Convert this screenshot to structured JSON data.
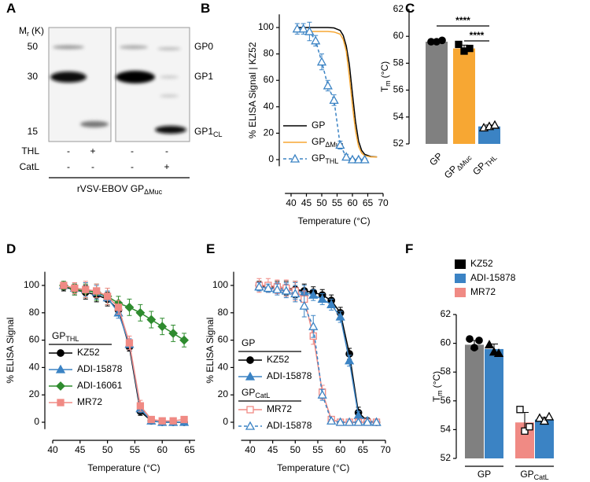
{
  "blot": {
    "panel": "A",
    "mr_label": "M",
    "mr_label_sub": "r",
    "mr_label_unit": "(K)",
    "mw_ticks": [
      "50",
      "30",
      "15"
    ],
    "bands": [
      {
        "text": "GP0"
      },
      {
        "text": "GP1"
      },
      {
        "text": "GP1",
        "text_sub": "CL"
      }
    ],
    "rows": [
      {
        "label": "THL",
        "values": [
          "-",
          "+",
          "-",
          "-"
        ]
      },
      {
        "label": "CatL",
        "values": [
          "-",
          "-",
          "-",
          "+"
        ]
      }
    ],
    "footer": "rVSV-EBOV GP",
    "footer_sub": "ΔMuc"
  },
  "chart_data": [
    {
      "type": "line",
      "panel": "B",
      "ylabel": "% ELISA Signal | KZ52",
      "xlabel": "Temperature (°C)",
      "xlim": [
        38,
        70
      ],
      "xticks": [
        40,
        45,
        50,
        55,
        60,
        65,
        70
      ],
      "ylim": [
        -5,
        110
      ],
      "yticks": [
        0,
        20,
        40,
        60,
        80,
        100
      ],
      "groups": [
        {
          "series": [
            {
              "name": "GP",
              "color": "#000000",
              "x": [
                42,
                44,
                46,
                48,
                50,
                52,
                54,
                56,
                57,
                58,
                59,
                60,
                61,
                62,
                63,
                64,
                66,
                68
              ],
              "values": [
                100,
                100,
                100,
                100,
                100,
                100,
                99.7,
                97.8,
                94,
                86,
                72,
                50,
                29,
                14,
                7,
                4,
                2.3,
                2
              ]
            },
            {
              "name": "GP",
              "name_sub": "ΔMuc",
              "color": "#f7a733",
              "x": [
                42,
                44,
                46,
                48,
                50,
                52,
                54,
                56,
                57,
                58,
                59,
                60,
                61,
                62,
                63,
                64,
                66,
                68
              ],
              "values": [
                97,
                97,
                97,
                97,
                97,
                97,
                96.6,
                95,
                91,
                82,
                63,
                41,
                22,
                10,
                5,
                3,
                2,
                2
              ]
            },
            {
              "name": "GP",
              "name_sub": "THL",
              "color": "#3b83c4",
              "dash": true,
              "marker": "triangle",
              "open": true,
              "x": [
                42,
                44,
                46,
                48,
                50,
                52,
                54,
                56,
                58,
                60,
                62,
                64
              ],
              "values": [
                99,
                99,
                97,
                90,
                74,
                56,
                45,
                11,
                2,
                0,
                0,
                0
              ],
              "errors": [
                4,
                4,
                7,
                4,
                6,
                4,
                4,
                3,
                2,
                1,
                1,
                1
              ]
            }
          ]
        }
      ]
    },
    {
      "type": "bar",
      "panel": "C",
      "ylabel": "T",
      "ylabel_sub": "m",
      "ylabel_unit": "(°C)",
      "ylim": [
        52,
        62
      ],
      "yticks": [
        52,
        54,
        56,
        58,
        60,
        62
      ],
      "significance": [
        "****",
        "****"
      ],
      "point_color": "#000000",
      "bars": [
        {
          "label": "GP",
          "color": "#808080",
          "value": 59.6,
          "error": 0.1,
          "marker": "circle",
          "points": [
            59.6,
            59.6,
            59.7
          ]
        },
        {
          "label": "GP",
          "label_sub": "ΔMuc",
          "color": "#f7a733",
          "value": 59.1,
          "error": 0.25,
          "marker": "square",
          "points": [
            59.4,
            58.9,
            59.1
          ]
        },
        {
          "label": "GP",
          "label_sub": "THL",
          "color": "#3b83c4",
          "value": 53.3,
          "error": 0.1,
          "marker": "triangle",
          "open": true,
          "points": [
            53.2,
            53.3,
            53.4
          ]
        }
      ]
    },
    {
      "type": "line",
      "panel": "D",
      "ylabel": "% ELISA Signal",
      "xlabel": "Temperature (°C)",
      "xlim": [
        40,
        66
      ],
      "xticks": [
        40,
        45,
        50,
        55,
        60,
        65
      ],
      "ylim": [
        -5,
        110
      ],
      "yticks": [
        0,
        20,
        40,
        60,
        80,
        100
      ],
      "groups": [
        {
          "title": "GP",
          "title_sub": "THL",
          "series": [
            {
              "name": "KZ52",
              "color": "#000000",
              "marker": "circle",
              "x": [
                42,
                44,
                46,
                48,
                50,
                52,
                54,
                56,
                58,
                60,
                62,
                64
              ],
              "values": [
                99,
                97,
                95,
                93,
                90,
                82,
                55,
                8,
                1,
                0,
                0,
                0
              ],
              "errors": [
                3,
                4,
                5,
                5,
                5,
                4,
                3,
                3,
                1,
                1,
                1,
                1
              ]
            },
            {
              "name": "ADI-15878",
              "color": "#3b83c4",
              "marker": "triangle",
              "x": [
                42,
                44,
                46,
                48,
                50,
                52,
                54,
                56,
                58,
                60,
                62,
                64
              ],
              "values": [
                100,
                98,
                97,
                95,
                91,
                80,
                57,
                10,
                1,
                0,
                0,
                0
              ],
              "errors": [
                2,
                4,
                5,
                5,
                5,
                4,
                4,
                3,
                1,
                1,
                1,
                1
              ]
            },
            {
              "name": "ADI-16061",
              "color": "#2e8b2e",
              "marker": "diamond",
              "x": [
                42,
                44,
                46,
                48,
                50,
                52,
                54,
                56,
                58,
                60,
                62,
                64
              ],
              "values": [
                100,
                97,
                96,
                95,
                92,
                87,
                84,
                80,
                75,
                70,
                65,
                60
              ],
              "errors": [
                3,
                4,
                5,
                6,
                6,
                5,
                6,
                6,
                6,
                6,
                6,
                5
              ]
            },
            {
              "name": "MR72",
              "color": "#f08a84",
              "marker": "square",
              "x": [
                42,
                44,
                46,
                48,
                50,
                52,
                54,
                56,
                58,
                60,
                62,
                64
              ],
              "values": [
                100,
                98,
                97,
                96,
                92,
                84,
                58,
                12,
                2,
                1,
                1,
                2
              ],
              "errors": [
                2,
                4,
                6,
                5,
                6,
                5,
                5,
                4,
                2,
                1,
                1,
                2
              ]
            }
          ]
        }
      ]
    },
    {
      "type": "line",
      "panel": "E",
      "ylabel": "% ELISA Signal",
      "xlabel": "Temperature (°C)",
      "xlim": [
        38,
        70
      ],
      "xticks": [
        40,
        45,
        50,
        55,
        60,
        65,
        70
      ],
      "ylim": [
        -5,
        110
      ],
      "yticks": [
        0,
        20,
        40,
        60,
        80,
        100
      ],
      "groups": [
        {
          "title": "GP",
          "series": [
            {
              "name": "KZ52",
              "color": "#000000",
              "marker": "circle",
              "x": [
                42,
                44,
                46,
                48,
                50,
                52,
                54,
                56,
                58,
                60,
                62,
                64,
                66,
                68
              ],
              "values": [
                100,
                99,
                99,
                98,
                97,
                96,
                95,
                93,
                89,
                80,
                50,
                7,
                1,
                0
              ],
              "errors": [
                3,
                3,
                4,
                5,
                6,
                5,
                4,
                4,
                4,
                4,
                4,
                4,
                1,
                1
              ]
            },
            {
              "name": "ADI-15878",
              "color": "#3b83c4",
              "marker": "triangle",
              "x": [
                42,
                44,
                46,
                48,
                50,
                52,
                54,
                56,
                58,
                60,
                62,
                64,
                66,
                68
              ],
              "values": [
                99,
                98,
                98,
                97,
                96,
                95,
                93,
                90,
                86,
                77,
                45,
                5,
                1,
                0
              ],
              "errors": [
                3,
                3,
                4,
                5,
                6,
                5,
                4,
                4,
                4,
                4,
                4,
                3,
                1,
                1
              ]
            }
          ]
        },
        {
          "title": "GP",
          "title_sub": "CatL",
          "series": [
            {
              "name": "MR72",
              "color": "#f08a84",
              "marker": "square",
              "open": true,
              "x": [
                42,
                44,
                46,
                48,
                50,
                52,
                54,
                56,
                58,
                60,
                62,
                64,
                66,
                68
              ],
              "values": [
                100,
                100,
                99,
                98,
                96,
                90,
                63,
                22,
                2,
                0,
                0,
                0,
                0,
                0
              ],
              "errors": [
                5,
                5,
                5,
                6,
                7,
                6,
                6,
                5,
                2,
                1,
                1,
                1,
                1,
                1
              ]
            },
            {
              "name": "ADI-15878",
              "color": "#3b83c4",
              "marker": "triangle",
              "open": true,
              "dash": true,
              "x": [
                42,
                44,
                46,
                48,
                50,
                52,
                54,
                56,
                58,
                60,
                62,
                64,
                66,
                68
              ],
              "values": [
                99,
                98,
                97,
                96,
                94,
                85,
                70,
                20,
                1,
                0,
                0,
                0,
                0,
                0
              ],
              "errors": [
                3,
                3,
                4,
                5,
                6,
                8,
                8,
                4,
                1,
                1,
                1,
                1,
                1,
                1
              ]
            }
          ]
        }
      ]
    },
    {
      "type": "grouped_bar",
      "panel": "F",
      "ylabel": "T",
      "ylabel_sub": "m",
      "ylabel_unit": "(°C)",
      "ylim": [
        52,
        62
      ],
      "yticks": [
        52,
        54,
        56,
        58,
        60,
        62
      ],
      "point_color": "#000000",
      "legend": [
        {
          "name": "KZ52",
          "color": "#000000"
        },
        {
          "name": "ADI-15878",
          "color": "#3b83c4"
        },
        {
          "name": "MR72",
          "color": "#f08a84"
        }
      ],
      "groups": [
        {
          "label": "GP",
          "bars": [
            {
              "color": "#808080",
              "value": 59.9,
              "error": 0.3,
              "marker": "circle",
              "points": [
                60.3,
                59.7,
                60.2
              ]
            },
            {
              "color": "#3b83c4",
              "value": 59.6,
              "error": 0.35,
              "marker": "triangle",
              "points": [
                59.9,
                59.4,
                59.3
              ]
            }
          ]
        },
        {
          "label": "GP",
          "label_sub": "CatL",
          "bars": [
            {
              "color": "#f08a84",
              "value": 54.5,
              "error": 0.7,
              "marker": "square",
              "open": true,
              "points": [
                55.4,
                53.9,
                54.2
              ]
            },
            {
              "color": "#3b83c4",
              "value": 54.7,
              "error": 0.15,
              "marker": "triangle",
              "open": true,
              "points": [
                54.8,
                54.6,
                54.9
              ]
            }
          ]
        }
      ]
    }
  ]
}
